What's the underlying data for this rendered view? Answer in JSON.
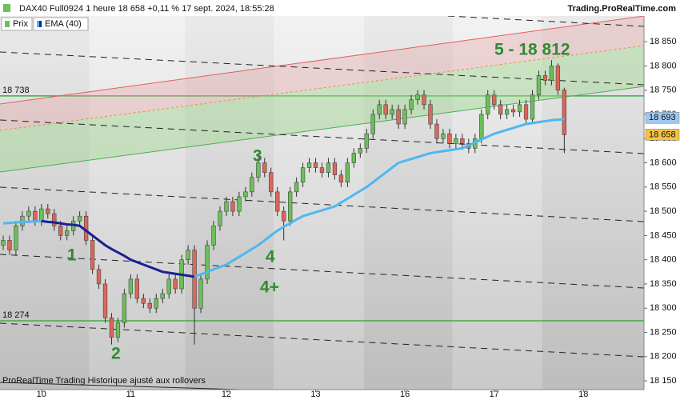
{
  "header": {
    "title": "DAX40 Full0924 1 heure 18 658 +0,11 % 17 sept. 2024, 18:55:28",
    "site": "Trading.ProRealTime.com",
    "footer": "ProRealTime Trading Historique ajusté aux rollovers"
  },
  "chart_data": {
    "type": "candlestick",
    "xlim": [
      -0.5,
      100.5
    ],
    "xticks": [
      {
        "value": 6,
        "label": "10"
      },
      {
        "value": 20,
        "label": "11"
      },
      {
        "value": 35,
        "label": "12"
      },
      {
        "value": 49,
        "label": "13"
      },
      {
        "value": 63,
        "label": "16"
      },
      {
        "value": 77,
        "label": "17"
      },
      {
        "value": 91,
        "label": "18"
      }
    ],
    "ylim": [
      18132,
      18936
    ],
    "yticks": [
      {
        "value": 18150,
        "label": "18 150"
      },
      {
        "value": 18200,
        "label": "18 200"
      },
      {
        "value": 18250,
        "label": "18 250"
      },
      {
        "value": 18300,
        "label": "18 300"
      },
      {
        "value": 18350,
        "label": "18 350"
      },
      {
        "value": 18400,
        "label": "18 400"
      },
      {
        "value": 18450,
        "label": "18 450"
      },
      {
        "value": 18500,
        "label": "18 500"
      },
      {
        "value": 18550,
        "label": "18 550"
      },
      {
        "value": 18600,
        "label": "18 600"
      },
      {
        "value": 18650,
        "label": "18 650"
      },
      {
        "value": 18700,
        "label": "18 700"
      },
      {
        "value": 18750,
        "label": "18 750"
      },
      {
        "value": 18800,
        "label": "18 800"
      },
      {
        "value": 18850,
        "label": "18 850"
      }
    ],
    "series": [
      {
        "name": "Prix",
        "up_color": "#6cbf5a",
        "down_color": "#d9685a",
        "open": [
          18430,
          18440,
          18420,
          18470,
          18490,
          18500,
          18480,
          18505,
          18495,
          18470,
          18450,
          18460,
          18480,
          18490,
          18440,
          18380,
          18350,
          18280,
          18240,
          18270,
          18330,
          18360,
          18320,
          18310,
          18300,
          18320,
          18330,
          18360,
          18340,
          18400,
          18420,
          18300,
          18360,
          18430,
          18470,
          18500,
          18520,
          18500,
          18530,
          18540,
          18570,
          18600,
          18580,
          18540,
          18500,
          18480,
          18540,
          18560,
          18590,
          18600,
          18590,
          18580,
          18600,
          18575,
          18560,
          18600,
          18620,
          18630,
          18660,
          18700,
          18720,
          18700,
          18710,
          18680,
          18710,
          18730,
          18740,
          18720,
          18680,
          18650,
          18660,
          18640,
          18650,
          18640,
          18630,
          18650,
          18700,
          18740,
          18720,
          18700,
          18710,
          18705,
          18720,
          18690,
          18740,
          18780,
          18770,
          18800,
          18750
        ],
        "high": [
          18450,
          18450,
          18480,
          18500,
          18510,
          18510,
          18515,
          18515,
          18505,
          18480,
          18470,
          18490,
          18500,
          18500,
          18450,
          18390,
          18360,
          18290,
          18280,
          18340,
          18370,
          18370,
          18330,
          18320,
          18330,
          18340,
          18370,
          18370,
          18410,
          18430,
          18430,
          18370,
          18440,
          18480,
          18510,
          18530,
          18530,
          18540,
          18550,
          18580,
          18620,
          18610,
          18590,
          18550,
          18510,
          18550,
          18570,
          18600,
          18610,
          18610,
          18600,
          18610,
          18610,
          18585,
          18610,
          18630,
          18640,
          18670,
          18710,
          18730,
          18730,
          18720,
          18720,
          18720,
          18740,
          18750,
          18750,
          18730,
          18690,
          18670,
          18670,
          18660,
          18660,
          18650,
          18660,
          18710,
          18750,
          18750,
          18730,
          18720,
          18720,
          18730,
          18730,
          18750,
          18790,
          18790,
          18812,
          18805,
          18755
        ],
        "low": [
          18420,
          18410,
          18410,
          18460,
          18480,
          18470,
          18470,
          18485,
          18460,
          18440,
          18440,
          18450,
          18470,
          18430,
          18370,
          18340,
          18270,
          18225,
          18230,
          18260,
          18320,
          18310,
          18300,
          18290,
          18290,
          18310,
          18320,
          18330,
          18330,
          18390,
          18225,
          18290,
          18350,
          18420,
          18460,
          18490,
          18490,
          18490,
          18520,
          18530,
          18560,
          18570,
          18530,
          18490,
          18440,
          18470,
          18530,
          18550,
          18580,
          18580,
          18570,
          18570,
          18565,
          18550,
          18550,
          18590,
          18610,
          18620,
          18650,
          18690,
          18690,
          18690,
          18670,
          18670,
          18700,
          18720,
          18710,
          18670,
          18640,
          18640,
          18630,
          18630,
          18630,
          18620,
          18620,
          18640,
          18690,
          18710,
          18690,
          18690,
          18695,
          18695,
          18680,
          18680,
          18730,
          18760,
          18760,
          18740,
          18620
        ],
        "close": [
          18440,
          18420,
          18470,
          18490,
          18500,
          18480,
          18505,
          18495,
          18470,
          18450,
          18460,
          18480,
          18490,
          18440,
          18380,
          18350,
          18280,
          18240,
          18270,
          18330,
          18360,
          18320,
          18310,
          18300,
          18320,
          18330,
          18360,
          18340,
          18400,
          18420,
          18300,
          18360,
          18430,
          18470,
          18500,
          18520,
          18500,
          18530,
          18540,
          18570,
          18600,
          18580,
          18540,
          18500,
          18480,
          18540,
          18560,
          18590,
          18600,
          18590,
          18580,
          18600,
          18575,
          18560,
          18600,
          18620,
          18630,
          18660,
          18700,
          18720,
          18700,
          18710,
          18680,
          18710,
          18730,
          18740,
          18720,
          18680,
          18650,
          18660,
          18640,
          18650,
          18640,
          18630,
          18650,
          18700,
          18740,
          18720,
          18700,
          18710,
          18705,
          18720,
          18690,
          18740,
          18780,
          18770,
          18800,
          18750,
          18658
        ]
      },
      {
        "name": "EMA (40)",
        "type": "line",
        "up_color": "#4db8f0",
        "down_color": "#1a2090",
        "values": [
          18475,
          18476,
          18477,
          18478,
          18478,
          18479,
          18480,
          18478,
          18477,
          18475,
          18473,
          18472,
          18470,
          18460,
          18450,
          18440,
          18430,
          18422,
          18415,
          18408,
          18400,
          18395,
          18390,
          18385,
          18380,
          18375,
          18373,
          18371,
          18369,
          18367,
          18365,
          18370,
          18375,
          18380,
          18385,
          18390,
          18398,
          18406,
          18414,
          18422,
          18430,
          18440,
          18450,
          18460,
          18468,
          18475,
          18483,
          18490,
          18494,
          18498,
          18502,
          18506,
          18510,
          18518,
          18526,
          18534,
          18542,
          18550,
          18560,
          18570,
          18580,
          18590,
          18600,
          18604,
          18608,
          18612,
          18616,
          18620,
          18622,
          18624,
          18626,
          18628,
          18630,
          18636,
          18642,
          18648,
          18654,
          18660,
          18664,
          18668,
          18672,
          18676,
          18680,
          18682,
          18684,
          18686,
          18688,
          18689,
          18690
        ]
      }
    ],
    "levels": [
      {
        "value": 18738,
        "label": "18 738"
      },
      {
        "value": 18274,
        "label": "18 274"
      }
    ],
    "level_color": "#3cb043",
    "markers": [
      {
        "value": 18693,
        "label": "18 693",
        "color": "#9fc8f0"
      },
      {
        "value": 18658,
        "label": "18 658",
        "color": "#f5c242"
      }
    ],
    "annotations": [
      "1",
      "2",
      "3",
      "4",
      "4+",
      "5 - 18 812"
    ]
  }
}
